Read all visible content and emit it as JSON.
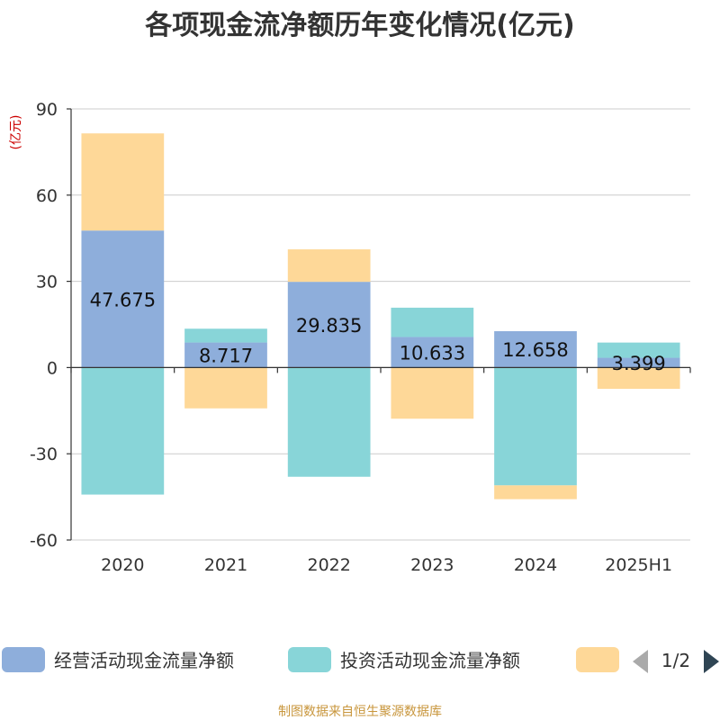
{
  "chart_data": {
    "type": "bar",
    "stacked": true,
    "title": "各项现金流净额历年变化情况(亿元)",
    "unit_label": "(亿元)",
    "categories": [
      "2020",
      "2021",
      "2022",
      "2023",
      "2024",
      "2025H1"
    ],
    "ylim": [
      -60,
      90
    ],
    "yticks": [
      90,
      60,
      30,
      0,
      -30,
      -60
    ],
    "grid": true,
    "series": [
      {
        "name": "经营活动现金流量净额",
        "color": "#8eaedb",
        "values": [
          47.675,
          8.717,
          29.835,
          10.633,
          12.658,
          3.399
        ],
        "show_labels": true
      },
      {
        "name": "投资活动现金流量净额",
        "color": "#88d5d8",
        "values": [
          -44.2,
          4.8,
          -38.0,
          10.2,
          -41.0,
          5.3
        ],
        "show_labels": false
      },
      {
        "name": "",
        "color": "#fed898",
        "values": [
          33.8,
          -14.2,
          11.3,
          -17.8,
          -4.8,
          -7.4
        ],
        "show_labels": false
      }
    ],
    "legend": {
      "position": "bottom",
      "page": "1/2"
    },
    "source": "制图数据来自恒生聚源数据库"
  }
}
